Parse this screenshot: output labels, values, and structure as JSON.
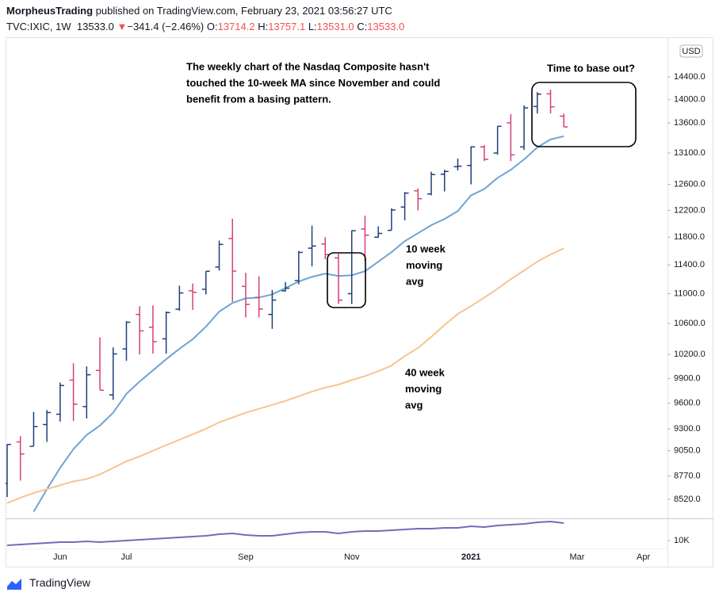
{
  "header": {
    "author": "MorpheusTrading",
    "published": "published on TradingView.com, February 23, 2021 03:56:27 UTC",
    "symbol": "TVC:IXIC, 1W",
    "last": "13533.0",
    "arrow": "▼",
    "change": "−341.4 (−2.46%)",
    "ohlc": [
      {
        "label": "O:",
        "value": "13714.2"
      },
      {
        "label": "H:",
        "value": "13757.1"
      },
      {
        "label": "L:",
        "value": "13531.0"
      },
      {
        "label": "C:",
        "value": "13533.0"
      }
    ]
  },
  "footer": {
    "logo": "TradingView"
  },
  "chart_data": {
    "type": "ohlc",
    "log_scale": true,
    "grid": false,
    "up_color": "#1f3f77",
    "down_color": "#d2417a",
    "categories": [
      null,
      null,
      null,
      null,
      "Jun",
      null,
      null,
      null,
      null,
      "Jul",
      null,
      null,
      null,
      null,
      null,
      null,
      null,
      null,
      "Sep",
      null,
      null,
      null,
      null,
      null,
      null,
      null,
      "Nov",
      null,
      null,
      null,
      null,
      null,
      null,
      null,
      null,
      "2021",
      null,
      null,
      null,
      null,
      null,
      null,
      null,
      "Mar",
      null,
      null,
      null,
      null,
      "Apr",
      null
    ],
    "open": [
      8690,
      9150,
      9100,
      9350,
      9470,
      9880,
      9560,
      10000,
      9700,
      10270,
      10720,
      10550,
      10400,
      10790,
      11040,
      11060,
      11370,
      11780,
      11100,
      10950,
      10720,
      11040,
      11180,
      11640,
      11700,
      11500,
      11000,
      11920,
      11800,
      11900,
      12250,
      12500,
      12450,
      12760,
      12880,
      12900,
      13200,
      13100,
      13600,
      13200,
      13880,
      14100,
      13714.2,
      null,
      null,
      null,
      null,
      null,
      null,
      null
    ],
    "high": [
      9125,
      9215,
      9497,
      9520,
      9850,
      10090,
      10050,
      10420,
      10290,
      10630,
      10830,
      10840,
      10760,
      11110,
      11140,
      11311,
      11750,
      12074,
      11290,
      11240,
      11050,
      11160,
      11600,
      11970,
      11800,
      11560,
      11900,
      12120,
      11960,
      12230,
      12480,
      12540,
      12800,
      12830,
      13010,
      13210,
      13230,
      13545,
      13750,
      13900,
      14130,
      14175,
      13757.1,
      null,
      null,
      null,
      null,
      null,
      null,
      null
    ],
    "low": [
      8545,
      8720,
      9100,
      9150,
      9384,
      9390,
      9420,
      9760,
      9640,
      10120,
      10200,
      10210,
      10210,
      10770,
      10780,
      10990,
      11320,
      10890,
      10680,
      10680,
      10530,
      11030,
      11130,
      11380,
      11480,
      10860,
      10860,
      11450,
      11790,
      11900,
      12050,
      12200,
      12430,
      12490,
      12820,
      12600,
      12970,
      13075,
      12970,
      13150,
      13760,
      13760,
      13531.0,
      null,
      null,
      null,
      null,
      null,
      null,
      null
    ],
    "close": [
      9121,
      9014,
      9325,
      9490,
      9814,
      9588,
      9946,
      9757,
      10207,
      10617,
      10503,
      10363,
      10745,
      11010,
      11019,
      11311,
      11695,
      11313,
      10854,
      10793,
      10913,
      11075,
      11579,
      11671,
      11548,
      10911,
      11895,
      11829,
      11855,
      12206,
      12464,
      12378,
      12755,
      12804,
      12888,
      13201,
      12998,
      13543,
      13070,
      13856,
      14095,
      13874,
      13533.0,
      null,
      null,
      null,
      null,
      null,
      null,
      null
    ],
    "series": [
      {
        "color": "#6fa3d6",
        "values": [
          null,
          null,
          8390,
          8628,
          8860,
          9068,
          9229,
          9338,
          9488,
          9713,
          9863,
          10000,
          10140,
          10272,
          10395,
          10559,
          10758,
          10874,
          10937,
          10947,
          10990,
          11078,
          11167,
          11233,
          11277,
          11244,
          11255,
          11311,
          11446,
          11582,
          11742,
          11859,
          11977,
          12070,
          12188,
          12430,
          12527,
          12702,
          12830,
          12997,
          13192,
          13324,
          13376,
          null,
          null,
          null,
          null,
          null,
          null,
          null
        ]
      },
      {
        "color": "#f8c391",
        "values": [
          8479,
          8537,
          8587,
          8628,
          8670,
          8712,
          8737,
          8788,
          8860,
          8932,
          8987,
          9050,
          9113,
          9175,
          9237,
          9300,
          9375,
          9431,
          9488,
          9534,
          9581,
          9628,
          9684,
          9741,
          9788,
          9825,
          9881,
          9930,
          9990,
          10060,
          10180,
          10282,
          10426,
          10579,
          10726,
          10832,
          10947,
          11067,
          11200,
          11322,
          11446,
          11548,
          11639,
          null,
          null,
          null,
          null,
          null,
          null,
          null
        ]
      }
    ],
    "ylim": [
      8329,
      15112
    ],
    "yticks": [
      {
        "value": 8520,
        "label": "8520.0"
      },
      {
        "value": 8770,
        "label": "8770.0"
      },
      {
        "value": 9050,
        "label": "9050.0"
      },
      {
        "value": 9300,
        "label": "9300.0"
      },
      {
        "value": 9600,
        "label": "9600.0"
      },
      {
        "value": 9900,
        "label": "9900.0"
      },
      {
        "value": 10200,
        "label": "10200.0"
      },
      {
        "value": 10600,
        "label": "10600.0"
      },
      {
        "value": 11000,
        "label": "11000.0"
      },
      {
        "value": 11400,
        "label": "11400.0"
      },
      {
        "value": 11800,
        "label": "11800.0"
      },
      {
        "value": 12200,
        "label": "12200.0"
      },
      {
        "value": 12600,
        "label": "12600.0"
      },
      {
        "value": 13100,
        "label": "13100.0"
      },
      {
        "value": 13600,
        "label": "13600.0"
      },
      {
        "value": 14000,
        "label": "14000.0"
      },
      {
        "value": 14400,
        "label": "14400.0"
      }
    ],
    "axis_unit": "USD",
    "indicator": {
      "color": "#7b68b6",
      "ylim": [
        9395,
        11640
      ],
      "yticks": [
        {
          "value": 10000,
          "label": "10K"
        }
      ],
      "values": [
        9638,
        9699,
        9759,
        9820,
        9881,
        9881,
        9941,
        9881,
        9941,
        10002,
        10063,
        10123,
        10184,
        10245,
        10305,
        10366,
        10487,
        10548,
        10427,
        10366,
        10366,
        10487,
        10609,
        10669,
        10669,
        10548,
        10669,
        10730,
        10730,
        10791,
        10851,
        10912,
        10912,
        10973,
        10973,
        11094,
        11033,
        11155,
        11215,
        11276,
        11397,
        11458,
        11337,
        null,
        null,
        null,
        null,
        null,
        null,
        null
      ]
    },
    "annotations": [
      {
        "lines": [
          "The weekly chart of the Nasdaq Composite hasn't",
          "touched the 10-week MA since November and could",
          "benefit from a basing pattern."
        ]
      },
      {
        "lines": [
          "Time to base out?"
        ]
      },
      {
        "lines": [
          "10 week",
          "moving",
          "avg"
        ]
      },
      {
        "lines": [
          "40 week",
          "moving",
          "avg"
        ]
      }
    ]
  }
}
